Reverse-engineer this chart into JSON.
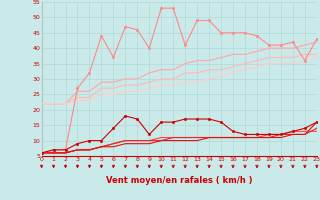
{
  "xlabel": "Vent moyen/en rafales ( km/h )",
  "xlim": [
    0,
    23
  ],
  "ylim": [
    5,
    55
  ],
  "yticks": [
    5,
    10,
    15,
    20,
    25,
    30,
    35,
    40,
    45,
    50,
    55
  ],
  "xticks": [
    0,
    1,
    2,
    3,
    4,
    5,
    6,
    7,
    8,
    9,
    10,
    11,
    12,
    13,
    14,
    15,
    16,
    17,
    18,
    19,
    20,
    21,
    22,
    23
  ],
  "background_color": "#caeaea",
  "grid_color": "#aad4d4",
  "lines": [
    {
      "x": [
        0,
        1,
        2,
        3,
        4,
        5,
        6,
        7,
        8,
        9,
        10,
        11,
        12,
        13,
        14,
        15,
        16,
        17,
        18,
        19,
        20,
        21,
        22,
        23
      ],
      "y": [
        6,
        7,
        7,
        27,
        32,
        44,
        37,
        47,
        46,
        40,
        53,
        53,
        41,
        49,
        49,
        45,
        45,
        45,
        44,
        41,
        41,
        42,
        36,
        43
      ],
      "color": "#ff8888",
      "linewidth": 0.8,
      "marker": "o",
      "markersize": 1.8,
      "zorder": 5
    },
    {
      "x": [
        0,
        1,
        2,
        3,
        4,
        5,
        6,
        7,
        8,
        9,
        10,
        11,
        12,
        13,
        14,
        15,
        16,
        17,
        18,
        19,
        20,
        21,
        22,
        23
      ],
      "y": [
        22,
        22,
        22,
        26,
        26,
        29,
        29,
        30,
        30,
        32,
        33,
        33,
        35,
        36,
        36,
        37,
        38,
        38,
        39,
        40,
        40,
        40,
        41,
        42
      ],
      "color": "#ffaaaa",
      "linewidth": 0.9,
      "marker": null,
      "markersize": 0,
      "zorder": 3
    },
    {
      "x": [
        0,
        1,
        2,
        3,
        4,
        5,
        6,
        7,
        8,
        9,
        10,
        11,
        12,
        13,
        14,
        15,
        16,
        17,
        18,
        19,
        20,
        21,
        22,
        23
      ],
      "y": [
        22,
        22,
        22,
        24,
        24,
        27,
        27,
        28,
        28,
        29,
        30,
        30,
        32,
        32,
        33,
        33,
        34,
        35,
        36,
        37,
        37,
        37,
        38,
        38
      ],
      "color": "#ffbbbb",
      "linewidth": 0.9,
      "marker": null,
      "markersize": 0,
      "zorder": 3
    },
    {
      "x": [
        0,
        1,
        2,
        3,
        4,
        5,
        6,
        7,
        8,
        9,
        10,
        11,
        12,
        13,
        14,
        15,
        16,
        17,
        18,
        19,
        20,
        21,
        22,
        23
      ],
      "y": [
        22,
        22,
        22,
        23,
        23,
        25,
        25,
        26,
        26,
        27,
        28,
        28,
        29,
        29,
        30,
        31,
        32,
        33,
        34,
        35,
        35,
        35,
        36,
        37
      ],
      "color": "#ffcccc",
      "linewidth": 0.9,
      "marker": null,
      "markersize": 0,
      "zorder": 3
    },
    {
      "x": [
        0,
        1,
        2,
        3,
        4,
        5,
        6,
        7,
        8,
        9,
        10,
        11,
        12,
        13,
        14,
        15,
        16,
        17,
        18,
        19,
        20,
        21,
        22,
        23
      ],
      "y": [
        6,
        7,
        7,
        9,
        10,
        10,
        14,
        18,
        17,
        12,
        16,
        16,
        17,
        17,
        17,
        16,
        13,
        12,
        12,
        12,
        12,
        13,
        14,
        16
      ],
      "color": "#cc0000",
      "linewidth": 0.8,
      "marker": "o",
      "markersize": 1.8,
      "zorder": 5
    },
    {
      "x": [
        0,
        1,
        2,
        3,
        4,
        5,
        6,
        7,
        8,
        9,
        10,
        11,
        12,
        13,
        14,
        15,
        16,
        17,
        18,
        19,
        20,
        21,
        22,
        23
      ],
      "y": [
        6,
        6,
        6,
        7,
        7,
        8,
        9,
        10,
        10,
        10,
        11,
        11,
        11,
        11,
        11,
        11,
        11,
        11,
        11,
        12,
        12,
        13,
        13,
        13
      ],
      "color": "#ff4444",
      "linewidth": 0.8,
      "marker": null,
      "markersize": 0,
      "zorder": 4
    },
    {
      "x": [
        0,
        1,
        2,
        3,
        4,
        5,
        6,
        7,
        8,
        9,
        10,
        11,
        12,
        13,
        14,
        15,
        16,
        17,
        18,
        19,
        20,
        21,
        22,
        23
      ],
      "y": [
        6,
        6,
        6,
        7,
        7,
        8,
        9,
        10,
        10,
        10,
        10,
        11,
        11,
        11,
        11,
        11,
        11,
        11,
        11,
        11,
        12,
        12,
        12,
        14
      ],
      "color": "#ee2222",
      "linewidth": 0.8,
      "marker": null,
      "markersize": 0,
      "zorder": 4
    },
    {
      "x": [
        0,
        1,
        2,
        3,
        4,
        5,
        6,
        7,
        8,
        9,
        10,
        11,
        12,
        13,
        14,
        15,
        16,
        17,
        18,
        19,
        20,
        21,
        22,
        23
      ],
      "y": [
        6,
        6,
        6,
        7,
        7,
        8,
        8,
        9,
        9,
        9,
        10,
        10,
        10,
        10,
        11,
        11,
        11,
        11,
        11,
        11,
        11,
        12,
        12,
        16
      ],
      "color": "#dd1111",
      "linewidth": 0.8,
      "marker": null,
      "markersize": 0,
      "zorder": 4
    }
  ],
  "arrow_color": "#cc0000",
  "tick_label_color": "#cc0000",
  "axis_label_color": "#cc0000",
  "tick_label_fontsize": 4.5,
  "xlabel_fontsize": 6.0
}
